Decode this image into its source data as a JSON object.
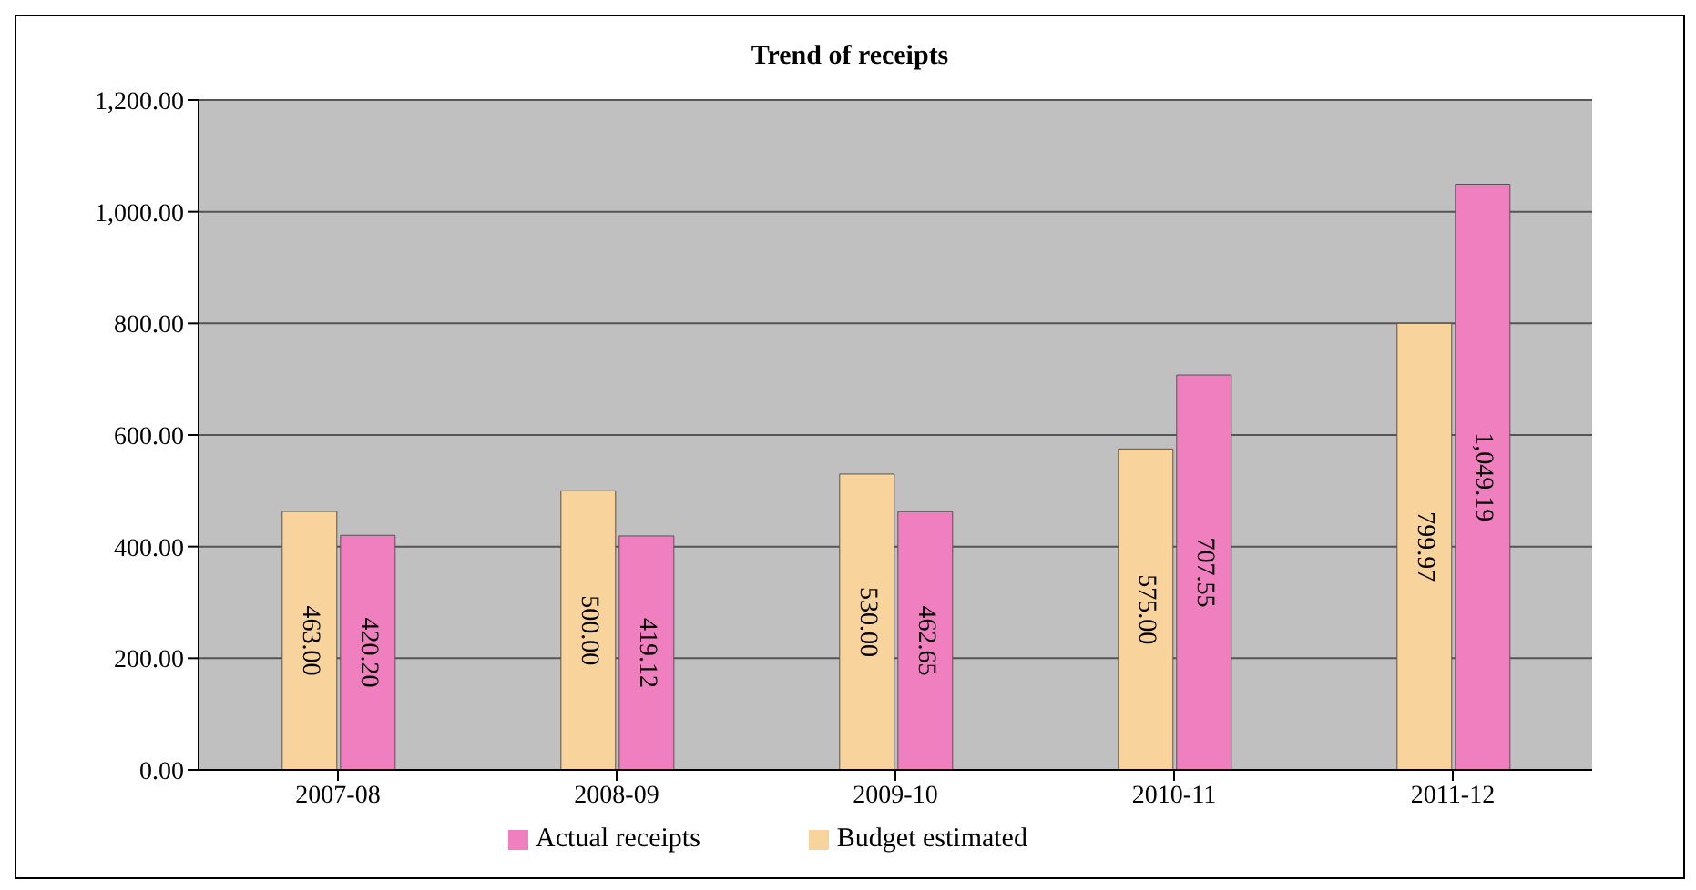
{
  "chart_data": {
    "type": "bar",
    "title": "Trend of receipts",
    "categories": [
      "2007-08",
      "2008-09",
      "2009-10",
      "2010-11",
      "2011-12"
    ],
    "series": [
      {
        "name": "Budget estimated",
        "color": "#f9d39c",
        "values": [
          463.0,
          500.0,
          530.0,
          575.0,
          799.97
        ],
        "value_labels": [
          "463.00",
          "500.00",
          "530.00",
          "575.00",
          "799.97"
        ]
      },
      {
        "name": "Actual receipts",
        "color": "#ef7fbf",
        "values": [
          420.2,
          419.12,
          462.65,
          707.55,
          1049.19
        ],
        "value_labels": [
          "420.20",
          "419.12",
          "462.65",
          "707.55",
          "1,049.19"
        ]
      }
    ],
    "ylim": [
      0,
      1200
    ],
    "yticks": [
      {
        "value": 0,
        "label": "0.00"
      },
      {
        "value": 200,
        "label": "200.00"
      },
      {
        "value": 400,
        "label": "400.00"
      },
      {
        "value": 600,
        "label": "600.00"
      },
      {
        "value": 800,
        "label": "800.00"
      },
      {
        "value": 1000,
        "label": "1,000.00"
      },
      {
        "value": 1200,
        "label": "1,200.00"
      }
    ],
    "grid": "y",
    "legend": "bottom"
  }
}
